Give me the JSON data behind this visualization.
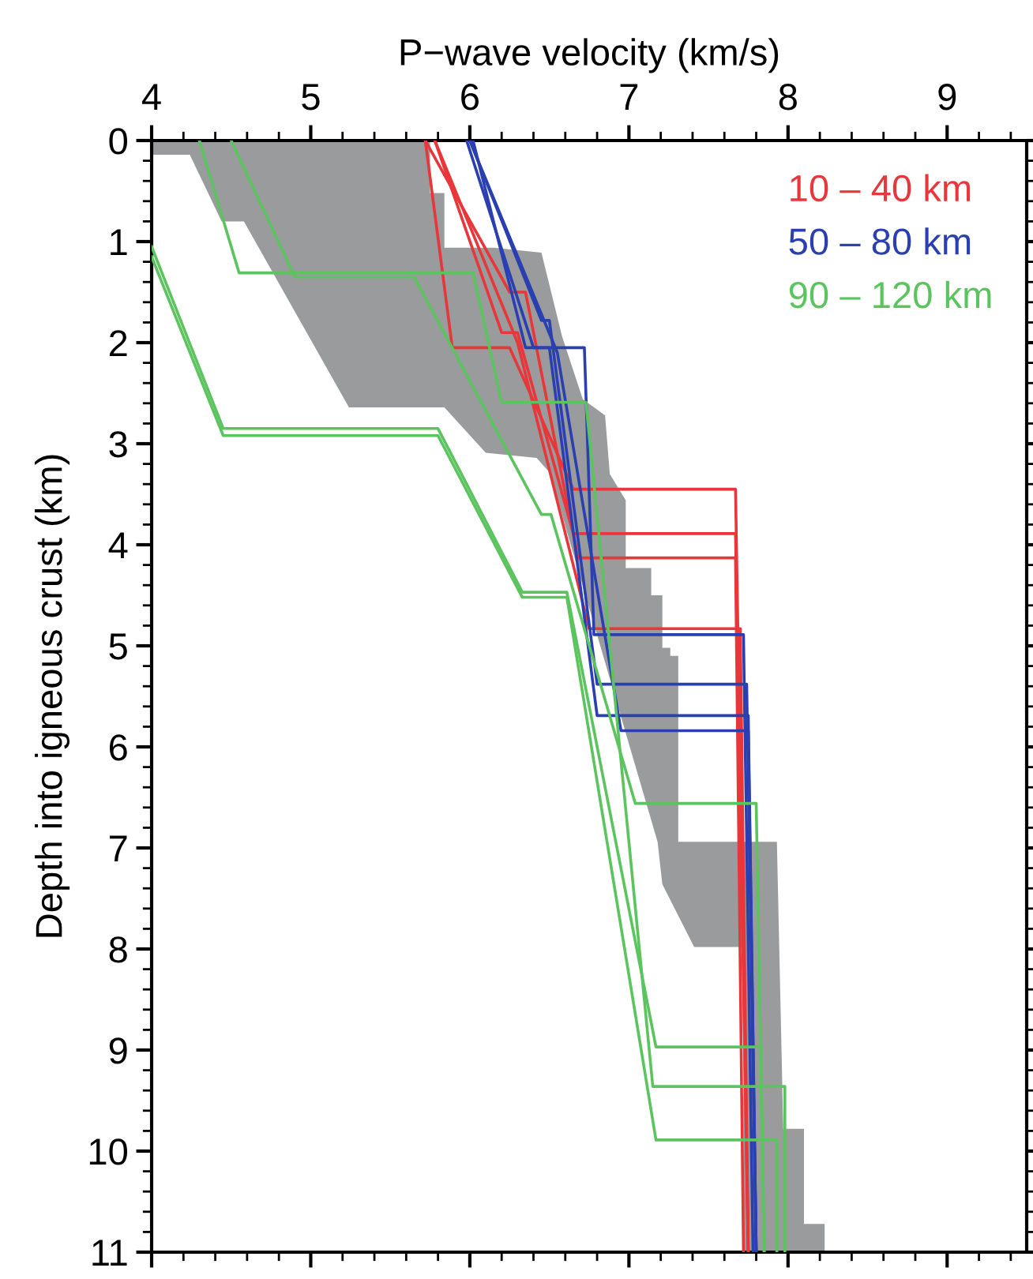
{
  "chart_data": {
    "type": "line",
    "xlabel": "P−wave velocity (km/s)",
    "ylabel": "Depth into igneous crust (km)",
    "xlim": [
      4,
      9.5
    ],
    "ylim": [
      11,
      0
    ],
    "xticks": [
      4,
      {
        "value": 4.2,
        "label": null
      },
      {
        "value": 4.4,
        "label": null
      },
      {
        "value": 4.6,
        "label": null
      },
      {
        "value": 4.8,
        "label": null
      },
      5,
      {
        "value": 5.2,
        "label": null
      },
      {
        "value": 5.4,
        "label": null
      },
      {
        "value": 5.6,
        "label": null
      },
      {
        "value": 5.8,
        "label": null
      },
      6,
      {
        "value": 6.2,
        "label": null
      },
      {
        "value": 6.4,
        "label": null
      },
      {
        "value": 6.6,
        "label": null
      },
      {
        "value": 6.8,
        "label": null
      },
      7,
      {
        "value": 7.2,
        "label": null
      },
      {
        "value": 7.4,
        "label": null
      },
      {
        "value": 7.6,
        "label": null
      },
      {
        "value": 7.8,
        "label": null
      },
      8,
      {
        "value": 8.2,
        "label": null
      },
      {
        "value": 8.4,
        "label": null
      },
      {
        "value": 8.6,
        "label": null
      },
      {
        "value": 8.8,
        "label": null
      },
      9,
      {
        "value": 9.2,
        "label": null
      },
      {
        "value": 9.4,
        "label": null
      }
    ],
    "yticks": [
      0,
      {
        "value": 0.2,
        "label": null
      },
      {
        "value": 0.4,
        "label": null
      },
      {
        "value": 0.6,
        "label": null
      },
      {
        "value": 0.8,
        "label": null
      },
      1,
      {
        "value": 1.2,
        "label": null
      },
      {
        "value": 1.4,
        "label": null
      },
      {
        "value": 1.6,
        "label": null
      },
      {
        "value": 1.8,
        "label": null
      },
      2,
      {
        "value": 2.2,
        "label": null
      },
      {
        "value": 2.4,
        "label": null
      },
      {
        "value": 2.6,
        "label": null
      },
      {
        "value": 2.8,
        "label": null
      },
      3,
      {
        "value": 3.2,
        "label": null
      },
      {
        "value": 3.4,
        "label": null
      },
      {
        "value": 3.6,
        "label": null
      },
      {
        "value": 3.8,
        "label": null
      },
      4,
      {
        "value": 4.2,
        "label": null
      },
      {
        "value": 4.4,
        "label": null
      },
      {
        "value": 4.6,
        "label": null
      },
      {
        "value": 4.8,
        "label": null
      },
      5,
      {
        "value": 5.2,
        "label": null
      },
      {
        "value": 5.4,
        "label": null
      },
      {
        "value": 5.6,
        "label": null
      },
      {
        "value": 5.8,
        "label": null
      },
      6,
      {
        "value": 6.2,
        "label": null
      },
      {
        "value": 6.4,
        "label": null
      },
      {
        "value": 6.6,
        "label": null
      },
      {
        "value": 6.8,
        "label": null
      },
      7,
      {
        "value": 7.2,
        "label": null
      },
      {
        "value": 7.4,
        "label": null
      },
      {
        "value": 7.6,
        "label": null
      },
      {
        "value": 7.8,
        "label": null
      },
      8,
      {
        "value": 8.2,
        "label": null
      },
      {
        "value": 8.4,
        "label": null
      },
      {
        "value": 8.6,
        "label": null
      },
      {
        "value": 8.8,
        "label": null
      },
      9,
      {
        "value": 9.2,
        "label": null
      },
      {
        "value": 9.4,
        "label": null
      },
      {
        "value": 9.6,
        "label": null
      },
      {
        "value": 9.8,
        "label": null
      },
      10,
      {
        "value": 10.2,
        "label": null
      },
      {
        "value": 10.4,
        "label": null
      },
      {
        "value": 10.6,
        "label": null
      },
      {
        "value": 10.8,
        "label": null
      },
      11
    ],
    "grid": false,
    "legend": "top right",
    "marker": "none",
    "line_style": "solid",
    "series": [
      {
        "type": "area",
        "color": "#9a9b9d",
        "x": [
          4.0,
          4.0,
          4.24,
          4.44,
          4.58,
          5.24,
          5.84,
          6.1,
          6.42,
          6.51,
          6.61,
          7.18,
          7.21,
          7.41,
          7.72,
          7.72,
          8.23,
          8.23,
          8.1,
          8.1,
          7.97,
          7.93,
          7.31,
          7.31,
          7.26,
          7.26,
          7.21,
          7.21,
          7.14,
          7.14,
          6.98,
          6.98,
          6.88,
          6.85,
          6.71,
          6.58,
          6.45,
          6.15,
          5.84,
          5.84,
          5.75,
          5.75
        ],
        "values": [
          0,
          0.14,
          0.14,
          0.8,
          0.8,
          2.64,
          2.64,
          3.09,
          3.14,
          3.3,
          3.87,
          6.94,
          7.36,
          7.98,
          7.98,
          11,
          11,
          10.72,
          10.72,
          9.78,
          9.78,
          6.94,
          6.94,
          5.1,
          5.1,
          5.02,
          5.02,
          4.5,
          4.5,
          4.23,
          4.23,
          3.56,
          3.3,
          2.72,
          2.56,
          1.94,
          1.11,
          1.06,
          1.06,
          0.52,
          0.52,
          0
        ]
      },
      {
        "name": "10 – 40 km",
        "color": "#e8373a",
        "x": [
          5.72,
          5.89,
          6.25,
          6.65,
          7.67,
          7.75
        ],
        "values": [
          0,
          2.05,
          2.05,
          3.45,
          3.45,
          11
        ]
      },
      {
        "color": "#e8373a",
        "x": [
          5.78,
          6.2,
          6.3,
          6.65,
          7.67,
          7.75
        ],
        "values": [
          0,
          1.9,
          1.9,
          3.89,
          3.89,
          11
        ]
      },
      {
        "color": "#e8373a",
        "x": [
          5.72,
          6.25,
          6.35,
          6.68,
          7.67,
          7.72
        ],
        "values": [
          0,
          1.5,
          1.5,
          4.13,
          4.13,
          11
        ]
      },
      {
        "color": "#e8373a",
        "x": [
          5.78,
          6.3,
          6.75,
          7.7,
          7.75
        ],
        "values": [
          0,
          2.0,
          4.83,
          4.83,
          11
        ]
      },
      {
        "name": "50 – 80 km",
        "color": "#2a3fb0",
        "x": [
          5.98,
          6.4,
          6.72,
          6.78,
          7.72,
          7.78
        ],
        "values": [
          0,
          2.05,
          2.05,
          4.89,
          4.89,
          11
        ]
      },
      {
        "color": "#2a3fb0",
        "x": [
          6.0,
          6.45,
          6.5,
          6.8,
          7.74,
          7.8
        ],
        "values": [
          0,
          1.78,
          1.78,
          5.38,
          5.38,
          11
        ]
      },
      {
        "color": "#2a3fb0",
        "x": [
          6.02,
          6.35,
          6.5,
          6.8,
          7.75,
          7.8
        ],
        "values": [
          0,
          2.05,
          2.05,
          5.69,
          5.69,
          11
        ]
      },
      {
        "color": "#2a3fb0",
        "x": [
          6.0,
          6.55,
          6.95,
          7.75,
          7.8
        ],
        "values": [
          0,
          2.1,
          5.84,
          5.84,
          11
        ]
      },
      {
        "name": "90 – 120 km",
        "color": "#5cc45f",
        "x": [
          4.3,
          4.55,
          6.02,
          6.2,
          6.73,
          7.15,
          7.98,
          7.98
        ],
        "values": [
          0,
          1.31,
          1.31,
          2.59,
          2.59,
          9.36,
          9.36,
          11
        ]
      },
      {
        "color": "#5cc45f",
        "x": [
          4.5,
          4.9,
          5.65,
          6.45,
          6.51,
          7.04,
          7.8,
          7.85
        ],
        "values": [
          0,
          1.35,
          1.35,
          3.7,
          3.7,
          6.56,
          6.56,
          11
        ]
      },
      {
        "color": "#5cc45f",
        "x": [
          4.0,
          4.45,
          5.8,
          6.33,
          6.61,
          7.17,
          7.83,
          7.85
        ],
        "values": [
          1.05,
          2.85,
          2.85,
          4.47,
          4.47,
          8.97,
          8.97,
          11
        ]
      },
      {
        "color": "#5cc45f",
        "x": [
          4.0,
          4.45,
          5.8,
          6.33,
          6.61,
          7.17,
          7.93,
          7.93
        ],
        "values": [
          1.15,
          2.92,
          2.92,
          4.52,
          4.52,
          9.89,
          9.89,
          11
        ]
      }
    ]
  }
}
